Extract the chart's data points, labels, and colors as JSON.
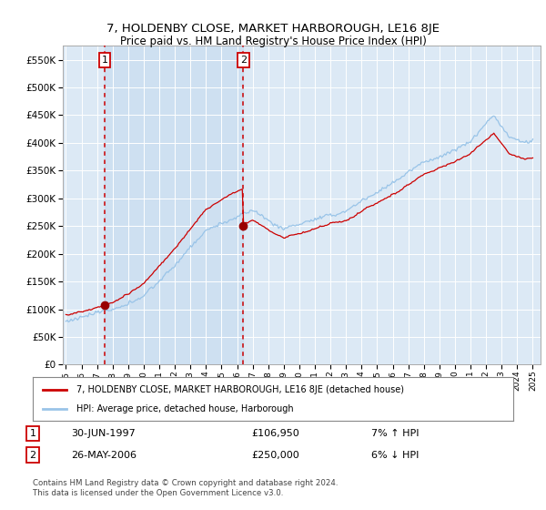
{
  "title": "7, HOLDENBY CLOSE, MARKET HARBOROUGH, LE16 8JE",
  "subtitle": "Price paid vs. HM Land Registry's House Price Index (HPI)",
  "ylim": [
    0,
    575000
  ],
  "yticks": [
    0,
    50000,
    100000,
    150000,
    200000,
    250000,
    300000,
    350000,
    400000,
    450000,
    500000,
    550000
  ],
  "background_color": "#dce9f5",
  "shade_color": "#c8ddf0",
  "grid_color": "#ffffff",
  "line1_color": "#cc0000",
  "line2_color": "#99c4e8",
  "marker_color": "#990000",
  "dashed_color": "#cc0000",
  "purchase1_date": 1997.49,
  "purchase1_price": 106950,
  "purchase2_date": 2006.39,
  "purchase2_price": 250000,
  "legend1_text": "7, HOLDENBY CLOSE, MARKET HARBOROUGH, LE16 8JE (detached house)",
  "legend2_text": "HPI: Average price, detached house, Harborough",
  "annotation1_date": "30-JUN-1997",
  "annotation1_price": "£106,950",
  "annotation1_hpi": "7% ↑ HPI",
  "annotation2_date": "26-MAY-2006",
  "annotation2_price": "£250,000",
  "annotation2_hpi": "6% ↓ HPI",
  "footer": "Contains HM Land Registry data © Crown copyright and database right 2024.\nThis data is licensed under the Open Government Licence v3.0.",
  "xmin": 1994.8,
  "xmax": 2025.5
}
